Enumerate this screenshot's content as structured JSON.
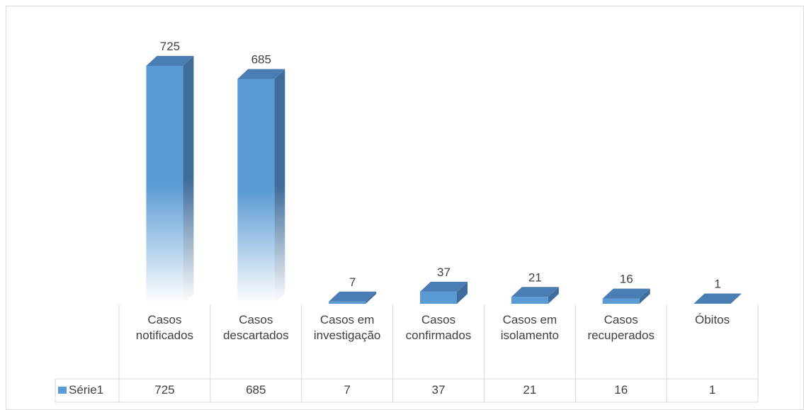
{
  "chart_data": {
    "type": "bar3d",
    "categories": [
      "Casos notificados",
      "Casos descartados",
      "Casos em investigação",
      "Casos confirmados",
      "Casos em isolamento",
      "Casos recuperados",
      "Óbitos"
    ],
    "series": [
      {
        "name": "Série1",
        "color": "#5b9bd5",
        "values": [
          725,
          685,
          7,
          37,
          21,
          16,
          1
        ]
      }
    ],
    "data_labels": true,
    "data_table": true
  }
}
